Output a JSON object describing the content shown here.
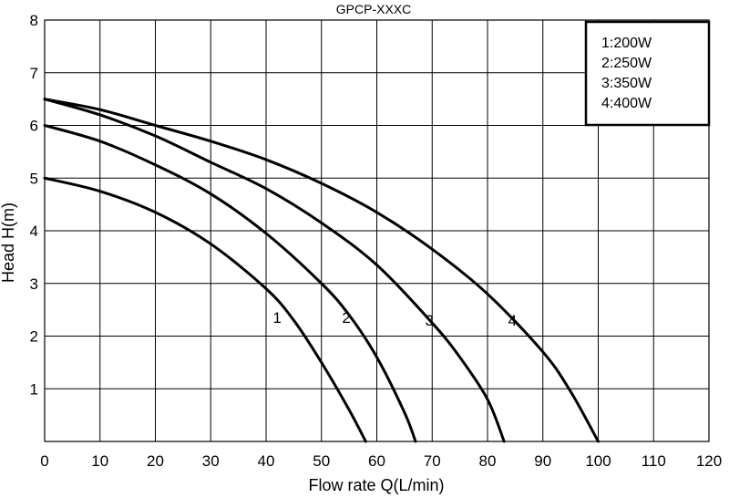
{
  "chart_data": {
    "type": "line",
    "title": "GPCP-XXXC",
    "xlabel": "Flow rate Q(L/min)",
    "ylabel": "Head H(m)",
    "xlim": [
      0,
      120
    ],
    "ylim": [
      0,
      8
    ],
    "x_ticks": [
      "0",
      "10",
      "20",
      "30",
      "40",
      "50",
      "60",
      "70",
      "80",
      "90",
      "100",
      "110",
      "120"
    ],
    "y_ticks": [
      "1",
      "2",
      "3",
      "4",
      "5",
      "6",
      "7",
      "8"
    ],
    "grid": true,
    "legend_position": "top-right",
    "legend": [
      "1:200W",
      "2:250W",
      "3:350W",
      "4:400W"
    ],
    "series": [
      {
        "name": "1",
        "label": "1",
        "label_at": [
          42,
          2.25
        ],
        "x": [
          0,
          10,
          20,
          30,
          40,
          45,
          50,
          55,
          58
        ],
        "y": [
          5.0,
          4.75,
          4.35,
          3.75,
          2.9,
          2.3,
          1.5,
          0.6,
          0
        ]
      },
      {
        "name": "2",
        "label": "2",
        "label_at": [
          54.5,
          2.25
        ],
        "x": [
          0,
          10,
          20,
          30,
          40,
          50,
          55,
          60,
          65,
          67
        ],
        "y": [
          6.0,
          5.7,
          5.25,
          4.7,
          3.95,
          3.0,
          2.4,
          1.6,
          0.55,
          0
        ]
      },
      {
        "name": "3",
        "label": "3",
        "label_at": [
          69.5,
          2.2
        ],
        "x": [
          0,
          10,
          20,
          30,
          40,
          50,
          60,
          70,
          75,
          80,
          83
        ],
        "y": [
          6.5,
          6.2,
          5.8,
          5.3,
          4.8,
          4.15,
          3.35,
          2.25,
          1.6,
          0.8,
          0
        ]
      },
      {
        "name": "4",
        "label": "4",
        "label_at": [
          84.5,
          2.2
        ],
        "x": [
          0,
          10,
          20,
          30,
          40,
          50,
          60,
          70,
          80,
          90,
          95,
          100
        ],
        "y": [
          6.5,
          6.3,
          6.0,
          5.7,
          5.35,
          4.9,
          4.35,
          3.65,
          2.8,
          1.7,
          0.95,
          0
        ]
      }
    ]
  }
}
